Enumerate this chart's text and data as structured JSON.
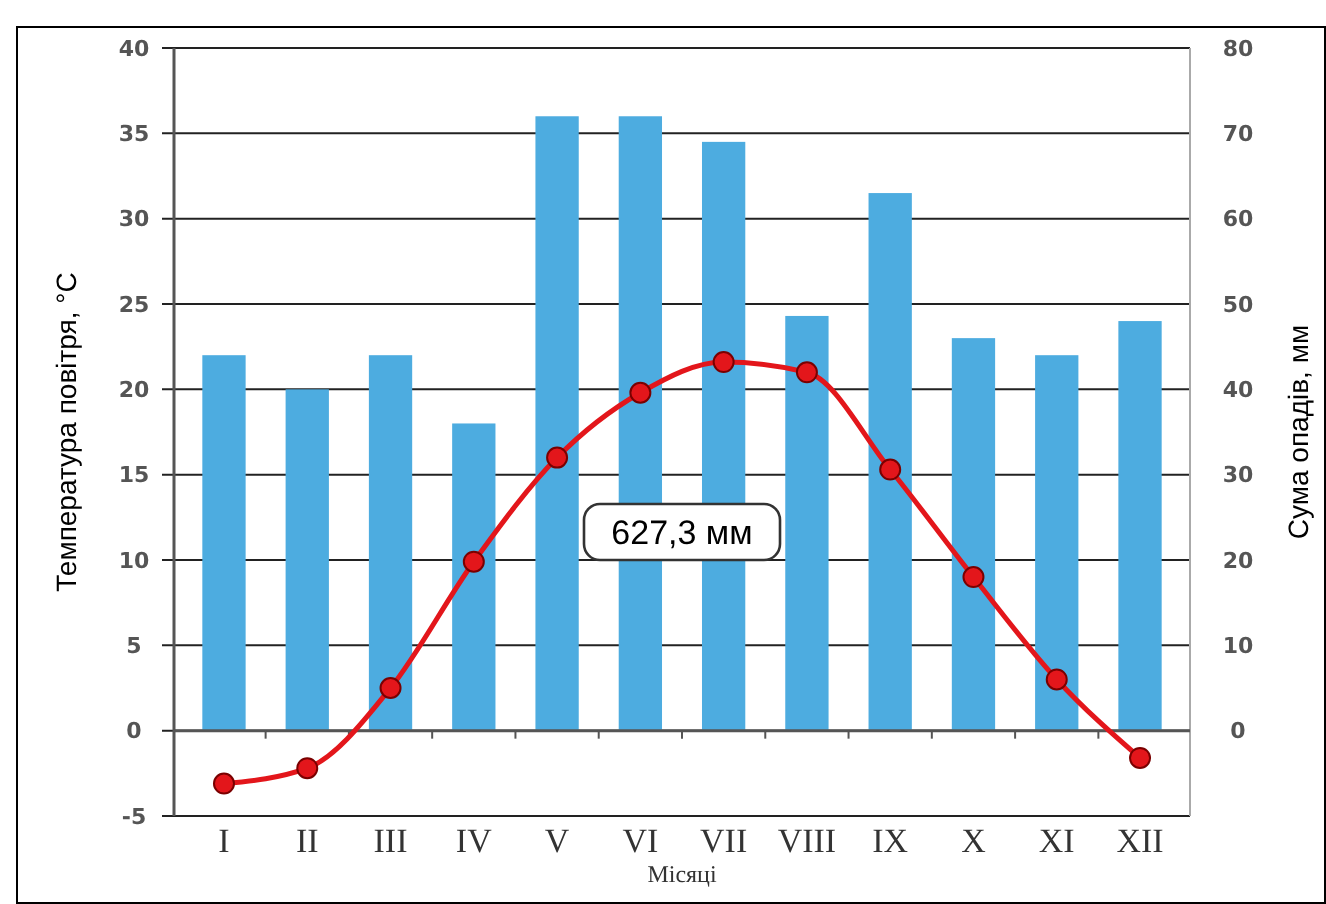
{
  "chart_data": {
    "type": "bar",
    "categories": [
      "I",
      "II",
      "III",
      "IV",
      "V",
      "VI",
      "VII",
      "VIII",
      "IX",
      "X",
      "XI",
      "XII"
    ],
    "xlabel": "Місяці",
    "ylabel": "Температура повітря, °С",
    "y2label": "Сума опадів, мм",
    "series": [
      {
        "axis": "y2",
        "color": "#4dace0",
        "values": [
          44,
          40,
          44,
          36,
          72,
          72,
          69,
          48.6,
          63,
          46,
          44,
          48
        ]
      },
      {
        "type": "line",
        "axis": "y",
        "color": "#e3161b",
        "marker": "circle",
        "values": [
          -3.1,
          -2.2,
          2.5,
          9.9,
          16,
          19.8,
          21.6,
          21,
          15.3,
          9,
          3,
          -1.6
        ]
      }
    ],
    "ylim": [
      -5,
      40
    ],
    "yticks": [
      -5,
      0,
      5,
      10,
      15,
      20,
      25,
      30,
      35,
      40
    ],
    "y2lim": [
      -10,
      80
    ],
    "y2ticks": [
      0,
      10,
      20,
      30,
      40,
      50,
      60,
      70,
      80
    ],
    "grid": "y",
    "annotations": [
      "627,3 мм"
    ]
  }
}
